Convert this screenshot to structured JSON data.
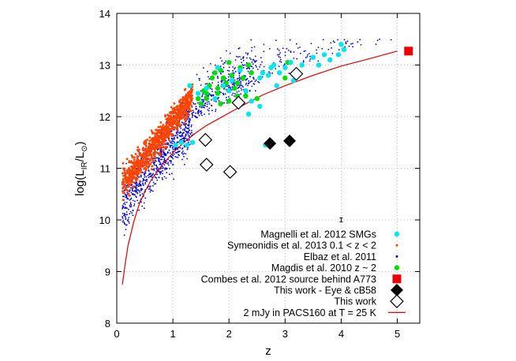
{
  "chart_data": {
    "type": "scatter",
    "xlabel": "z",
    "ylabel": "log(L_IR/L_⊙)",
    "xlim": [
      0,
      5.4
    ],
    "ylim": [
      8,
      14
    ],
    "xticks": [
      "0",
      "1",
      "2",
      "3",
      "4",
      "5"
    ],
    "yticks": [
      "8",
      "9",
      "10",
      "11",
      "12",
      "13",
      "14"
    ],
    "grid": true,
    "legend_position": "bottom-right",
    "series": [
      {
        "name": "Magnelli et al. 2012 SMGs",
        "marker": "circle",
        "color": "#00e5ee",
        "points": [
          [
            1.05,
            11.45
          ],
          [
            1.15,
            11.5
          ],
          [
            1.25,
            11.45
          ],
          [
            1.35,
            11.5
          ],
          [
            1.3,
            12.6
          ],
          [
            1.45,
            12.45
          ],
          [
            1.6,
            12.55
          ],
          [
            1.75,
            12.35
          ],
          [
            1.8,
            12.95
          ],
          [
            1.9,
            12.6
          ],
          [
            2.0,
            12.5
          ],
          [
            2.05,
            12.7
          ],
          [
            2.2,
            12.9
          ],
          [
            2.3,
            12.5
          ],
          [
            2.35,
            12.05
          ],
          [
            2.4,
            12.3
          ],
          [
            2.55,
            12.75
          ],
          [
            2.6,
            12.85
          ],
          [
            2.7,
            12.8
          ],
          [
            2.75,
            12.95
          ],
          [
            2.8,
            13.0
          ],
          [
            2.85,
            12.6
          ],
          [
            2.9,
            12.85
          ],
          [
            3.0,
            12.95
          ],
          [
            3.1,
            13.05
          ],
          [
            3.15,
            12.7
          ],
          [
            3.3,
            13.0
          ],
          [
            3.5,
            13.15
          ],
          [
            3.6,
            13.0
          ],
          [
            3.7,
            13.2
          ],
          [
            3.8,
            13.1
          ],
          [
            3.95,
            13.2
          ],
          [
            4.0,
            13.4
          ],
          [
            4.05,
            13.3
          ],
          [
            2.65,
            11.45
          ],
          [
            2.55,
            12.2
          ],
          [
            2.65,
            11.45
          ]
        ]
      },
      {
        "name": "Symeonidis et al. 2013 0.1 < z < 2",
        "marker": "dot",
        "color": "#ff4500",
        "region": {
          "z_min": 0.1,
          "z_max": 1.3,
          "center": [
            0.55,
            11.5
          ],
          "spread": [
            0.3,
            0.5
          ]
        }
      },
      {
        "name": "Elbaz et al. 2011",
        "marker": "dot",
        "color": "#0000cc",
        "region": {
          "z_min": 0.05,
          "z_max": 5.2,
          "center": [
            1.2,
            11.2
          ],
          "spread": [
            1.0,
            0.8
          ]
        }
      },
      {
        "name": "Magdis et al. 2010 z ~ 2",
        "marker": "circle",
        "color": "#00dd00",
        "points": [
          [
            1.45,
            12.35
          ],
          [
            1.5,
            12.25
          ],
          [
            1.55,
            12.5
          ],
          [
            1.6,
            12.45
          ],
          [
            1.6,
            12.35
          ],
          [
            1.65,
            12.6
          ],
          [
            1.7,
            12.75
          ],
          [
            1.75,
            12.85
          ],
          [
            1.8,
            12.55
          ],
          [
            1.8,
            12.45
          ],
          [
            1.85,
            12.25
          ],
          [
            1.85,
            12.9
          ],
          [
            1.9,
            12.75
          ],
          [
            1.95,
            12.65
          ],
          [
            2.0,
            12.3
          ],
          [
            2.0,
            13.05
          ],
          [
            2.05,
            12.8
          ],
          [
            2.1,
            12.55
          ],
          [
            2.15,
            12.65
          ],
          [
            2.15,
            12.4
          ],
          [
            2.2,
            12.95
          ],
          [
            2.25,
            12.75
          ],
          [
            2.3,
            12.4
          ],
          [
            2.35,
            13.0
          ],
          [
            2.4,
            12.85
          ],
          [
            2.5,
            12.35
          ],
          [
            3.05,
            13.05
          ],
          [
            3.0,
            12.75
          ]
        ]
      },
      {
        "name": "Combes et al. 2012 source behind A773",
        "marker": "square",
        "color": "#ee0000",
        "points": [
          [
            5.2,
            13.27
          ]
        ]
      },
      {
        "name": "This work - Eye & cB58",
        "marker": "diamond-filled",
        "color": "#000000",
        "points": [
          [
            2.73,
            11.48
          ],
          [
            3.08,
            11.53
          ]
        ]
      },
      {
        "name": "This work",
        "marker": "diamond-open",
        "color": "#000000",
        "points": [
          [
            1.58,
            11.55
          ],
          [
            1.6,
            11.07
          ],
          [
            2.02,
            10.93
          ],
          [
            2.17,
            12.27
          ],
          [
            3.2,
            12.83
          ]
        ]
      },
      {
        "name": "2 mJy in PACS160 at T = 25 K",
        "marker": "line",
        "color": "#dd0000",
        "points": [
          [
            0.1,
            8.75
          ],
          [
            0.15,
            9.15
          ],
          [
            0.2,
            9.5
          ],
          [
            0.3,
            9.95
          ],
          [
            0.4,
            10.3
          ],
          [
            0.5,
            10.55
          ],
          [
            0.6,
            10.75
          ],
          [
            0.8,
            11.05
          ],
          [
            1.0,
            11.3
          ],
          [
            1.2,
            11.5
          ],
          [
            1.4,
            11.68
          ],
          [
            1.6,
            11.83
          ],
          [
            1.8,
            11.95
          ],
          [
            2.0,
            12.07
          ],
          [
            2.3,
            12.25
          ],
          [
            2.6,
            12.42
          ],
          [
            3.0,
            12.6
          ],
          [
            3.5,
            12.8
          ],
          [
            4.0,
            12.98
          ],
          [
            4.5,
            13.12
          ],
          [
            5.0,
            13.27
          ]
        ]
      }
    ],
    "error_bar": {
      "x": 4.0,
      "y": 10.0,
      "half": 0.04
    }
  }
}
